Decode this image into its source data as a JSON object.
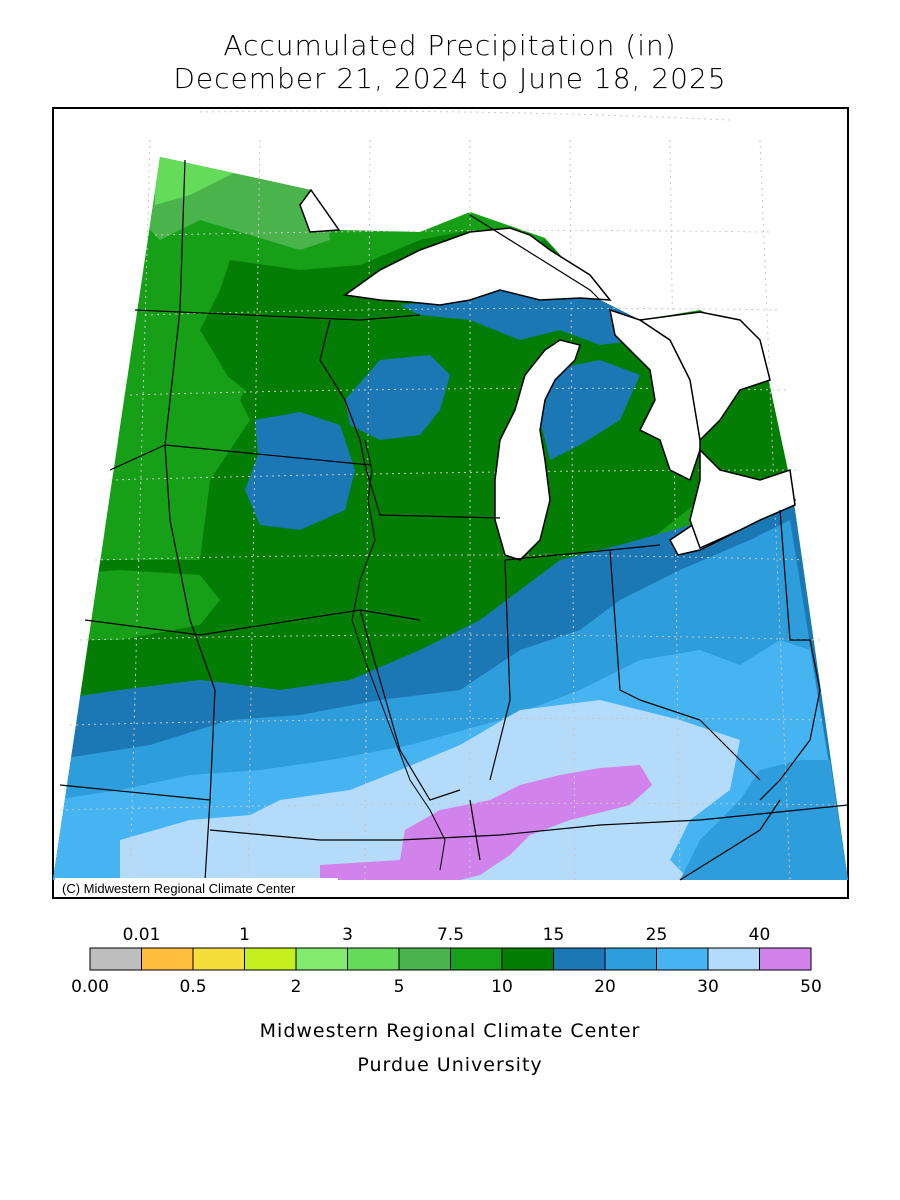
{
  "title": {
    "line1": "Accumulated Precipitation (in)",
    "line2": "December 21, 2024 to June 18, 2025"
  },
  "map": {
    "copyright": "(C) Midwestern Regional Climate Center"
  },
  "legend": {
    "top_labels": [
      "0.01",
      "1",
      "3",
      "7.5",
      "15",
      "25",
      "40"
    ],
    "bottom_labels": [
      "0.00",
      "0.5",
      "2",
      "5",
      "10",
      "20",
      "30",
      "50"
    ],
    "colors": [
      "#bebebe",
      "#ffbe3c",
      "#f5de3c",
      "#c3f01e",
      "#82eb6e",
      "#64dc5a",
      "#4bb34b",
      "#17a017",
      "#037d03",
      "#1c78b4",
      "#2d9ddc",
      "#46b4f0",
      "#b4dcfa",
      "#d282eb"
    ]
  },
  "footer": {
    "line1": "Midwestern Regional Climate Center",
    "line2": "Purdue University"
  }
}
